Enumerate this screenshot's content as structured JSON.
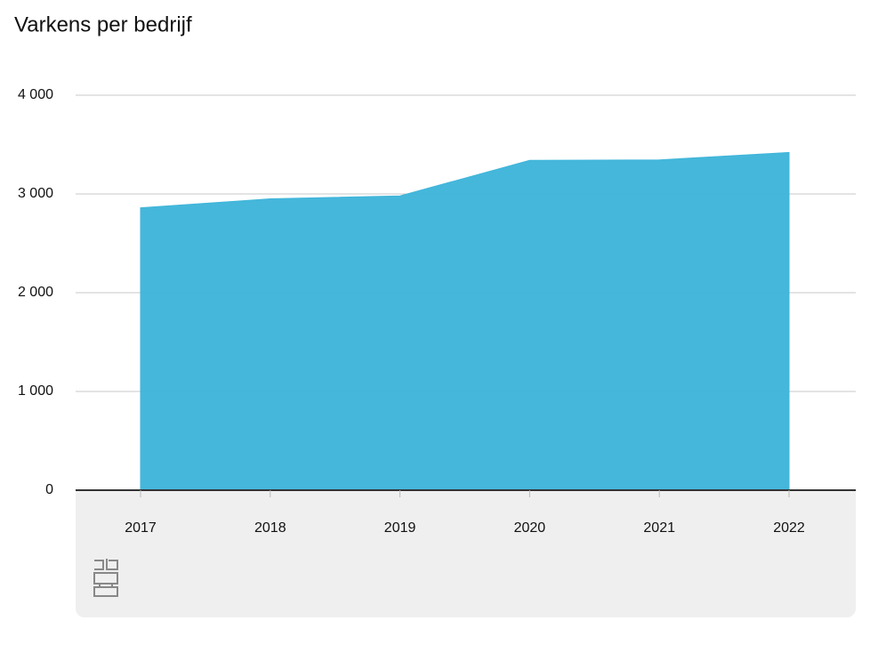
{
  "chart_data": {
    "type": "area",
    "title": "Varkens per bedrijf",
    "categories": [
      "2017",
      "2018",
      "2019",
      "2020",
      "2021",
      "2022"
    ],
    "values": [
      2860,
      2950,
      2980,
      3340,
      3345,
      3420
    ],
    "color": "#3fb5da",
    "ylim": [
      0,
      4000
    ],
    "yticks": [
      0,
      {
        "value": 1000,
        "label": "1 000"
      },
      {
        "value": 2000,
        "label": "2 000"
      },
      {
        "value": 3000,
        "label": "3 000"
      },
      {
        "value": 4000,
        "label": "4 000"
      }
    ],
    "grid": true
  }
}
